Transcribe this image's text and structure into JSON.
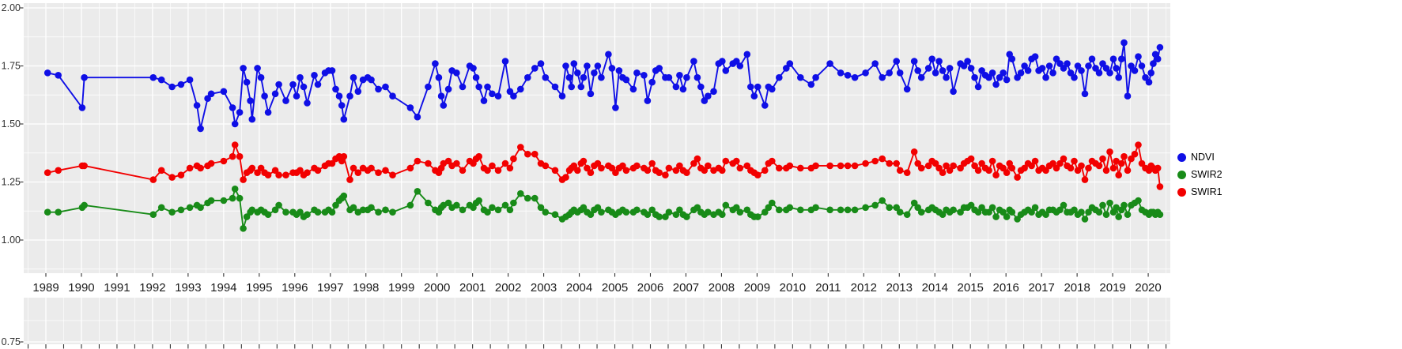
{
  "chart_data": {
    "type": "scatter",
    "title": "",
    "panel_bg": "#EBEBEB",
    "grid_color": "#FFFFFF",
    "axis_text_color": "#303030",
    "tick_color": "#333333",
    "legend": {
      "position": "right",
      "items": [
        "NDVI",
        "SWIR2",
        "SWIR1"
      ]
    },
    "x_axis": {
      "tick_years": [
        1989,
        1990,
        1991,
        1992,
        1993,
        1994,
        1995,
        1996,
        1997,
        1998,
        1999,
        2000,
        2001,
        2002,
        2003,
        2004,
        2005,
        2006,
        2007,
        2008,
        2009,
        2010,
        2011,
        2012,
        2013,
        2014,
        2015,
        2016,
        2017,
        2018,
        2019,
        2020
      ]
    },
    "y_axis": {
      "tick_labels": [
        "2.00",
        "1.75",
        "1.50",
        "1.25",
        "1.00",
        "0.75"
      ],
      "major_step": 0.25,
      "range_shown": [
        0.75,
        2.0
      ]
    },
    "x": [
      1989.05,
      1989.35,
      1990.02,
      1990.08,
      1992.02,
      1992.25,
      1992.55,
      1992.8,
      1993.05,
      1993.25,
      1993.35,
      1993.55,
      1993.65,
      1994.0,
      1994.25,
      1994.32,
      1994.45,
      1994.55,
      1994.65,
      1994.75,
      1994.8,
      1994.95,
      1995.05,
      1995.15,
      1995.25,
      1995.45,
      1995.55,
      1995.75,
      1995.95,
      1996.05,
      1996.15,
      1996.25,
      1996.35,
      1996.55,
      1996.65,
      1996.85,
      1996.95,
      1997.05,
      1997.15,
      1997.25,
      1997.32,
      1997.38,
      1997.55,
      1997.65,
      1997.78,
      1997.92,
      1998.05,
      1998.15,
      1998.35,
      1998.55,
      1998.75,
      1999.25,
      1999.45,
      1999.75,
      1999.95,
      2000.05,
      2000.12,
      2000.18,
      2000.32,
      2000.42,
      2000.55,
      2000.72,
      2000.92,
      2001.02,
      2001.1,
      2001.18,
      2001.32,
      2001.42,
      2001.55,
      2001.72,
      2001.92,
      2002.05,
      2002.15,
      2002.35,
      2002.55,
      2002.75,
      2002.92,
      2003.05,
      2003.32,
      2003.52,
      2003.62,
      2003.72,
      2003.78,
      2003.85,
      2003.95,
      2004.05,
      2004.12,
      2004.22,
      2004.32,
      2004.42,
      2004.52,
      2004.62,
      2004.82,
      2004.92,
      2005.02,
      2005.12,
      2005.22,
      2005.32,
      2005.52,
      2005.62,
      2005.82,
      2005.92,
      2006.05,
      2006.15,
      2006.25,
      2006.42,
      2006.52,
      2006.72,
      2006.82,
      2006.92,
      2007.02,
      2007.22,
      2007.32,
      2007.42,
      2007.52,
      2007.62,
      2007.78,
      2007.92,
      2008.02,
      2008.12,
      2008.32,
      2008.42,
      2008.52,
      2008.72,
      2008.82,
      2008.92,
      2009.02,
      2009.22,
      2009.32,
      2009.42,
      2009.62,
      2009.82,
      2009.92,
      2010.22,
      2010.52,
      2010.65,
      2011.05,
      2011.35,
      2011.55,
      2011.75,
      2012.05,
      2012.32,
      2012.52,
      2012.72,
      2012.92,
      2013.02,
      2013.22,
      2013.42,
      2013.52,
      2013.62,
      2013.82,
      2013.92,
      2014.02,
      2014.12,
      2014.22,
      2014.32,
      2014.42,
      2014.52,
      2014.72,
      2014.82,
      2014.92,
      2015.02,
      2015.12,
      2015.22,
      2015.32,
      2015.42,
      2015.52,
      2015.62,
      2015.72,
      2015.82,
      2015.92,
      2016.02,
      2016.1,
      2016.17,
      2016.32,
      2016.42,
      2016.52,
      2016.62,
      2016.72,
      2016.82,
      2016.92,
      2017.02,
      2017.12,
      2017.22,
      2017.32,
      2017.42,
      2017.52,
      2017.62,
      2017.72,
      2017.82,
      2017.92,
      2018.02,
      2018.12,
      2018.22,
      2018.32,
      2018.42,
      2018.52,
      2018.62,
      2018.72,
      2018.82,
      2018.92,
      2019.02,
      2019.1,
      2019.17,
      2019.25,
      2019.32,
      2019.42,
      2019.52,
      2019.62,
      2019.72,
      2019.82,
      2019.92,
      2020.02,
      2020.08,
      2020.14,
      2020.2,
      2020.27,
      2020.33
    ],
    "series": [
      {
        "name": "NDVI",
        "color": "#0F0FE6",
        "values": [
          1.72,
          1.71,
          1.57,
          1.7,
          1.7,
          1.69,
          1.66,
          1.67,
          1.69,
          1.58,
          1.48,
          1.61,
          1.63,
          1.64,
          1.57,
          1.5,
          1.55,
          1.74,
          1.68,
          1.6,
          1.52,
          1.74,
          1.7,
          1.62,
          1.55,
          1.63,
          1.67,
          1.6,
          1.67,
          1.62,
          1.7,
          1.66,
          1.59,
          1.71,
          1.67,
          1.72,
          1.73,
          1.73,
          1.65,
          1.62,
          1.58,
          1.52,
          1.62,
          1.7,
          1.64,
          1.69,
          1.7,
          1.69,
          1.65,
          1.66,
          1.62,
          1.57,
          1.53,
          1.66,
          1.76,
          1.7,
          1.62,
          1.58,
          1.65,
          1.73,
          1.72,
          1.66,
          1.75,
          1.74,
          1.7,
          1.66,
          1.6,
          1.66,
          1.63,
          1.62,
          1.77,
          1.64,
          1.62,
          1.65,
          1.7,
          1.74,
          1.76,
          1.7,
          1.66,
          1.62,
          1.75,
          1.7,
          1.66,
          1.76,
          1.72,
          1.66,
          1.7,
          1.75,
          1.63,
          1.72,
          1.75,
          1.7,
          1.8,
          1.74,
          1.57,
          1.73,
          1.7,
          1.69,
          1.65,
          1.72,
          1.71,
          1.6,
          1.68,
          1.73,
          1.74,
          1.7,
          1.7,
          1.66,
          1.71,
          1.65,
          1.7,
          1.77,
          1.7,
          1.66,
          1.6,
          1.62,
          1.64,
          1.76,
          1.77,
          1.73,
          1.76,
          1.77,
          1.75,
          1.8,
          1.66,
          1.62,
          1.66,
          1.58,
          1.66,
          1.65,
          1.7,
          1.74,
          1.76,
          1.7,
          1.67,
          1.7,
          1.76,
          1.72,
          1.71,
          1.7,
          1.72,
          1.76,
          1.7,
          1.72,
          1.77,
          1.72,
          1.65,
          1.77,
          1.73,
          1.7,
          1.74,
          1.78,
          1.72,
          1.77,
          1.73,
          1.7,
          1.74,
          1.64,
          1.76,
          1.75,
          1.77,
          1.74,
          1.7,
          1.66,
          1.73,
          1.71,
          1.7,
          1.72,
          1.67,
          1.7,
          1.72,
          1.69,
          1.8,
          1.78,
          1.7,
          1.72,
          1.75,
          1.73,
          1.78,
          1.79,
          1.73,
          1.74,
          1.7,
          1.75,
          1.72,
          1.78,
          1.76,
          1.74,
          1.76,
          1.72,
          1.7,
          1.75,
          1.73,
          1.63,
          1.75,
          1.78,
          1.74,
          1.72,
          1.76,
          1.74,
          1.72,
          1.78,
          1.74,
          1.7,
          1.78,
          1.85,
          1.62,
          1.75,
          1.73,
          1.79,
          1.75,
          1.7,
          1.68,
          1.72,
          1.76,
          1.8,
          1.78,
          1.83
        ]
      },
      {
        "name": "SWIR2",
        "color": "#188B18",
        "values": [
          1.12,
          1.12,
          1.14,
          1.15,
          1.11,
          1.14,
          1.12,
          1.13,
          1.14,
          1.15,
          1.14,
          1.16,
          1.17,
          1.17,
          1.18,
          1.22,
          1.18,
          1.05,
          1.1,
          1.12,
          1.13,
          1.12,
          1.13,
          1.12,
          1.11,
          1.13,
          1.15,
          1.12,
          1.12,
          1.11,
          1.12,
          1.1,
          1.11,
          1.13,
          1.12,
          1.12,
          1.13,
          1.12,
          1.15,
          1.17,
          1.18,
          1.19,
          1.13,
          1.14,
          1.12,
          1.13,
          1.13,
          1.14,
          1.12,
          1.13,
          1.12,
          1.15,
          1.21,
          1.16,
          1.13,
          1.12,
          1.14,
          1.15,
          1.16,
          1.14,
          1.15,
          1.13,
          1.15,
          1.14,
          1.16,
          1.17,
          1.13,
          1.12,
          1.14,
          1.13,
          1.15,
          1.13,
          1.16,
          1.2,
          1.18,
          1.18,
          1.14,
          1.12,
          1.11,
          1.09,
          1.1,
          1.11,
          1.12,
          1.13,
          1.12,
          1.13,
          1.14,
          1.12,
          1.11,
          1.13,
          1.14,
          1.12,
          1.13,
          1.12,
          1.11,
          1.12,
          1.13,
          1.12,
          1.12,
          1.13,
          1.12,
          1.11,
          1.13,
          1.11,
          1.1,
          1.1,
          1.12,
          1.11,
          1.13,
          1.11,
          1.1,
          1.13,
          1.14,
          1.12,
          1.11,
          1.12,
          1.11,
          1.12,
          1.11,
          1.15,
          1.13,
          1.14,
          1.12,
          1.13,
          1.11,
          1.1,
          1.1,
          1.12,
          1.14,
          1.16,
          1.13,
          1.13,
          1.14,
          1.13,
          1.13,
          1.14,
          1.13,
          1.13,
          1.13,
          1.13,
          1.14,
          1.15,
          1.17,
          1.14,
          1.14,
          1.12,
          1.11,
          1.16,
          1.14,
          1.12,
          1.13,
          1.14,
          1.13,
          1.12,
          1.11,
          1.13,
          1.12,
          1.13,
          1.12,
          1.14,
          1.14,
          1.15,
          1.13,
          1.12,
          1.14,
          1.12,
          1.12,
          1.14,
          1.1,
          1.13,
          1.12,
          1.1,
          1.13,
          1.12,
          1.09,
          1.11,
          1.12,
          1.13,
          1.12,
          1.14,
          1.11,
          1.12,
          1.11,
          1.13,
          1.13,
          1.12,
          1.13,
          1.15,
          1.12,
          1.12,
          1.13,
          1.11,
          1.12,
          1.09,
          1.12,
          1.14,
          1.13,
          1.12,
          1.15,
          1.11,
          1.16,
          1.12,
          1.14,
          1.1,
          1.13,
          1.15,
          1.11,
          1.15,
          1.16,
          1.17,
          1.13,
          1.12,
          1.11,
          1.12,
          1.12,
          1.11,
          1.12,
          1.11
        ]
      },
      {
        "name": "SWIR1",
        "color": "#F20000",
        "values": [
          1.29,
          1.3,
          1.32,
          1.32,
          1.26,
          1.3,
          1.27,
          1.28,
          1.31,
          1.32,
          1.31,
          1.32,
          1.33,
          1.34,
          1.36,
          1.41,
          1.36,
          1.26,
          1.29,
          1.3,
          1.31,
          1.29,
          1.31,
          1.29,
          1.28,
          1.3,
          1.28,
          1.28,
          1.29,
          1.29,
          1.3,
          1.28,
          1.29,
          1.31,
          1.3,
          1.32,
          1.33,
          1.33,
          1.35,
          1.36,
          1.34,
          1.36,
          1.26,
          1.31,
          1.29,
          1.31,
          1.3,
          1.31,
          1.29,
          1.3,
          1.28,
          1.31,
          1.34,
          1.33,
          1.3,
          1.29,
          1.31,
          1.33,
          1.34,
          1.32,
          1.33,
          1.3,
          1.34,
          1.33,
          1.35,
          1.36,
          1.31,
          1.3,
          1.32,
          1.3,
          1.33,
          1.31,
          1.35,
          1.4,
          1.37,
          1.37,
          1.33,
          1.32,
          1.3,
          1.26,
          1.27,
          1.3,
          1.31,
          1.32,
          1.3,
          1.33,
          1.34,
          1.31,
          1.29,
          1.32,
          1.33,
          1.31,
          1.32,
          1.31,
          1.29,
          1.31,
          1.32,
          1.3,
          1.31,
          1.32,
          1.31,
          1.3,
          1.33,
          1.3,
          1.29,
          1.28,
          1.31,
          1.3,
          1.32,
          1.3,
          1.29,
          1.33,
          1.35,
          1.31,
          1.3,
          1.32,
          1.3,
          1.31,
          1.3,
          1.34,
          1.33,
          1.34,
          1.31,
          1.32,
          1.3,
          1.29,
          1.28,
          1.3,
          1.33,
          1.34,
          1.31,
          1.31,
          1.32,
          1.31,
          1.31,
          1.32,
          1.32,
          1.32,
          1.32,
          1.32,
          1.33,
          1.34,
          1.35,
          1.33,
          1.33,
          1.3,
          1.29,
          1.38,
          1.33,
          1.31,
          1.32,
          1.34,
          1.33,
          1.31,
          1.29,
          1.32,
          1.3,
          1.32,
          1.31,
          1.33,
          1.34,
          1.35,
          1.32,
          1.3,
          1.33,
          1.31,
          1.3,
          1.34,
          1.28,
          1.32,
          1.31,
          1.29,
          1.33,
          1.31,
          1.27,
          1.3,
          1.31,
          1.33,
          1.32,
          1.34,
          1.3,
          1.31,
          1.3,
          1.32,
          1.33,
          1.31,
          1.33,
          1.35,
          1.32,
          1.31,
          1.34,
          1.3,
          1.32,
          1.26,
          1.31,
          1.34,
          1.33,
          1.32,
          1.35,
          1.3,
          1.38,
          1.31,
          1.34,
          1.28,
          1.33,
          1.36,
          1.3,
          1.35,
          1.37,
          1.41,
          1.33,
          1.31,
          1.3,
          1.32,
          1.31,
          1.3,
          1.31,
          1.23
        ]
      }
    ]
  }
}
